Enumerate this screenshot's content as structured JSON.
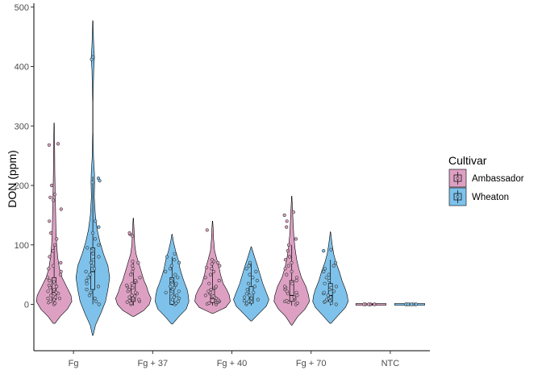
{
  "chart_data": {
    "type": "violin",
    "ylabel": "DON (ppm)",
    "xlabel": "",
    "ylim": [
      -78,
      510
    ],
    "yticks": [
      0,
      100,
      200,
      300,
      400,
      500
    ],
    "categories": [
      "Fg",
      "Fg + 37",
      "Fg + 40",
      "Fg + 70",
      "NTC"
    ],
    "legend": {
      "title": "Cultivar",
      "placement": "right",
      "entries": [
        {
          "name": "Ambassador",
          "color": "#DDA0C3"
        },
        {
          "name": "Wheaton",
          "color": "#7EC2EB"
        }
      ]
    },
    "series": [
      {
        "name": "Ambassador",
        "color": "#DDA0C3",
        "groups": [
          {
            "category": "Fg",
            "min": -32,
            "max": 305,
            "q1": 8,
            "median": 20,
            "q3": 45,
            "whisker_low": -2,
            "whisker_high": 100,
            "density": [
              [
                -32,
                0.05
              ],
              [
                -20,
                0.35
              ],
              [
                -8,
                0.75
              ],
              [
                5,
                1.0
              ],
              [
                15,
                0.95
              ],
              [
                30,
                0.7
              ],
              [
                45,
                0.45
              ],
              [
                60,
                0.3
              ],
              [
                80,
                0.2
              ],
              [
                100,
                0.14
              ],
              [
                130,
                0.1
              ],
              [
                160,
                0.08
              ],
              [
                190,
                0.06
              ],
              [
                220,
                0.04
              ],
              [
                260,
                0.03
              ],
              [
                305,
                0.01
              ]
            ],
            "points": [
              0,
              2,
              3,
              5,
              6,
              8,
              10,
              10,
              12,
              14,
              15,
              18,
              20,
              22,
              25,
              28,
              30,
              32,
              35,
              38,
              40,
              45,
              50,
              55,
              60,
              65,
              70,
              80,
              90,
              100,
              110,
              120,
              140,
              160,
              175,
              180,
              185,
              200,
              268,
              270
            ]
          },
          {
            "category": "Fg + 37",
            "min": -20,
            "max": 145,
            "q1": 5,
            "median": 15,
            "q3": 35,
            "whisker_low": -2,
            "whisker_high": 75,
            "density": [
              [
                -20,
                0.05
              ],
              [
                -10,
                0.6
              ],
              [
                0,
                0.9
              ],
              [
                10,
                1.0
              ],
              [
                20,
                0.85
              ],
              [
                30,
                0.75
              ],
              [
                40,
                0.6
              ],
              [
                55,
                0.45
              ],
              [
                70,
                0.3
              ],
              [
                85,
                0.15
              ],
              [
                100,
                0.08
              ],
              [
                120,
                0.05
              ],
              [
                145,
                0.01
              ]
            ],
            "points": [
              0,
              2,
              4,
              5,
              6,
              8,
              10,
              12,
              14,
              15,
              18,
              20,
              22,
              25,
              28,
              30,
              32,
              35,
              38,
              40,
              45,
              50,
              55,
              60,
              65,
              70,
              72,
              115,
              118,
              120
            ]
          },
          {
            "category": "Fg + 40",
            "min": -15,
            "max": 140,
            "q1": 3,
            "median": 10,
            "q3": 25,
            "whisker_low": -2,
            "whisker_high": 70,
            "density": [
              [
                -15,
                0.05
              ],
              [
                -5,
                0.75
              ],
              [
                5,
                1.0
              ],
              [
                15,
                0.95
              ],
              [
                25,
                0.8
              ],
              [
                35,
                0.6
              ],
              [
                50,
                0.45
              ],
              [
                65,
                0.35
              ],
              [
                75,
                0.25
              ],
              [
                90,
                0.12
              ],
              [
                110,
                0.06
              ],
              [
                125,
                0.04
              ],
              [
                140,
                0.01
              ]
            ],
            "points": [
              0,
              1,
              2,
              3,
              4,
              5,
              6,
              8,
              10,
              12,
              14,
              15,
              18,
              20,
              22,
              25,
              28,
              30,
              35,
              40,
              45,
              50,
              55,
              60,
              62,
              65,
              68,
              70,
              72,
              75,
              125
            ]
          },
          {
            "category": "Fg + 70",
            "min": -35,
            "max": 182,
            "q1": 5,
            "median": 15,
            "q3": 40,
            "whisker_low": -2,
            "whisker_high": 100,
            "density": [
              [
                -35,
                0.02
              ],
              [
                -20,
                0.35
              ],
              [
                -8,
                0.75
              ],
              [
                5,
                1.0
              ],
              [
                15,
                0.95
              ],
              [
                30,
                0.8
              ],
              [
                45,
                0.55
              ],
              [
                60,
                0.4
              ],
              [
                75,
                0.28
              ],
              [
                95,
                0.18
              ],
              [
                115,
                0.12
              ],
              [
                135,
                0.08
              ],
              [
                155,
                0.05
              ],
              [
                182,
                0.01
              ]
            ],
            "points": [
              0,
              2,
              4,
              5,
              6,
              8,
              10,
              12,
              15,
              18,
              20,
              22,
              25,
              28,
              30,
              35,
              40,
              45,
              50,
              55,
              60,
              65,
              70,
              75,
              80,
              90,
              100,
              110,
              130,
              140,
              150,
              155
            ]
          },
          {
            "category": "NTC",
            "min": -1.5,
            "max": 1.5,
            "q1": 0,
            "median": 0,
            "q3": 0,
            "whisker_low": 0,
            "whisker_high": 0,
            "density": [
              [
                -1.5,
                0.05
              ],
              [
                -0.5,
                1.0
              ],
              [
                0.5,
                1.0
              ],
              [
                1.5,
                0.05
              ]
            ],
            "points": [
              0,
              0,
              0,
              0,
              0,
              0,
              0,
              0,
              0,
              0
            ]
          }
        ]
      },
      {
        "name": "Wheaton",
        "color": "#7EC2EB",
        "groups": [
          {
            "category": "Fg",
            "min": -52,
            "max": 477,
            "q1": 25,
            "median": 55,
            "q3": 95,
            "whisker_low": 0,
            "whisker_high": 215,
            "density": [
              [
                -52,
                0.02
              ],
              [
                -35,
                0.15
              ],
              [
                -15,
                0.45
              ],
              [
                5,
                0.72
              ],
              [
                25,
                0.85
              ],
              [
                45,
                0.95
              ],
              [
                65,
                0.85
              ],
              [
                85,
                0.6
              ],
              [
                105,
                0.4
              ],
              [
                125,
                0.25
              ],
              [
                150,
                0.14
              ],
              [
                180,
                0.08
              ],
              [
                205,
                0.1
              ],
              [
                220,
                0.09
              ],
              [
                245,
                0.04
              ],
              [
                290,
                0.01
              ],
              [
                340,
                0.01
              ],
              [
                395,
                0.05
              ],
              [
                415,
                0.09
              ],
              [
                435,
                0.05
              ],
              [
                477,
                0.01
              ]
            ],
            "points": [
              0,
              5,
              10,
              15,
              20,
              25,
              30,
              35,
              40,
              45,
              50,
              55,
              60,
              65,
              70,
              75,
              80,
              85,
              90,
              95,
              100,
              110,
              120,
              130,
              140,
              205,
              208,
              212,
              412,
              416
            ]
          },
          {
            "category": "Fg + 37",
            "min": -33,
            "max": 118,
            "q1": 0,
            "median": 25,
            "q3": 45,
            "whisker_low": -2,
            "whisker_high": 80,
            "density": [
              [
                -33,
                0.03
              ],
              [
                -20,
                0.4
              ],
              [
                -8,
                0.8
              ],
              [
                5,
                0.95
              ],
              [
                15,
                0.92
              ],
              [
                25,
                0.85
              ],
              [
                35,
                0.72
              ],
              [
                45,
                0.6
              ],
              [
                60,
                0.45
              ],
              [
                75,
                0.35
              ],
              [
                90,
                0.2
              ],
              [
                105,
                0.08
              ],
              [
                118,
                0.01
              ]
            ],
            "points": [
              0,
              2,
              5,
              8,
              10,
              12,
              15,
              18,
              20,
              22,
              25,
              28,
              30,
              32,
              35,
              38,
              40,
              45,
              50,
              55,
              60,
              65,
              70,
              75,
              80,
              85
            ]
          },
          {
            "category": "Fg + 40",
            "min": -28,
            "max": 97,
            "q1": 2,
            "median": 10,
            "q3": 30,
            "whisker_low": -2,
            "whisker_high": 70,
            "density": [
              [
                -28,
                0.03
              ],
              [
                -15,
                0.45
              ],
              [
                -3,
                0.85
              ],
              [
                8,
                1.0
              ],
              [
                20,
                0.85
              ],
              [
                35,
                0.65
              ],
              [
                50,
                0.5
              ],
              [
                65,
                0.35
              ],
              [
                80,
                0.18
              ],
              [
                97,
                0.01
              ]
            ],
            "points": [
              0,
              2,
              4,
              5,
              6,
              8,
              10,
              12,
              15,
              18,
              20,
              25,
              30,
              35,
              40,
              45,
              50,
              55,
              60,
              65,
              70
            ]
          },
          {
            "category": "Fg + 70",
            "min": -32,
            "max": 122,
            "q1": 5,
            "median": 15,
            "q3": 35,
            "whisker_low": -2,
            "whisker_high": 75,
            "density": [
              [
                -32,
                0.03
              ],
              [
                -18,
                0.45
              ],
              [
                -5,
                0.85
              ],
              [
                5,
                1.0
              ],
              [
                15,
                0.95
              ],
              [
                25,
                0.85
              ],
              [
                40,
                0.65
              ],
              [
                55,
                0.5
              ],
              [
                70,
                0.32
              ],
              [
                85,
                0.18
              ],
              [
                100,
                0.1
              ],
              [
                122,
                0.01
              ]
            ],
            "points": [
              0,
              2,
              4,
              5,
              6,
              8,
              10,
              12,
              15,
              18,
              20,
              22,
              25,
              28,
              30,
              35,
              40,
              45,
              50,
              55,
              60,
              65,
              70,
              90,
              92
            ]
          },
          {
            "category": "NTC",
            "min": -1.5,
            "max": 1.5,
            "q1": 0,
            "median": 0,
            "q3": 0,
            "whisker_low": 0,
            "whisker_high": 0,
            "density": [
              [
                -1.5,
                0.05
              ],
              [
                -0.5,
                1.0
              ],
              [
                0.5,
                1.0
              ],
              [
                1.5,
                0.05
              ]
            ],
            "points": [
              0,
              0,
              0,
              0,
              0,
              0,
              0,
              0,
              0,
              0
            ]
          }
        ]
      }
    ]
  }
}
